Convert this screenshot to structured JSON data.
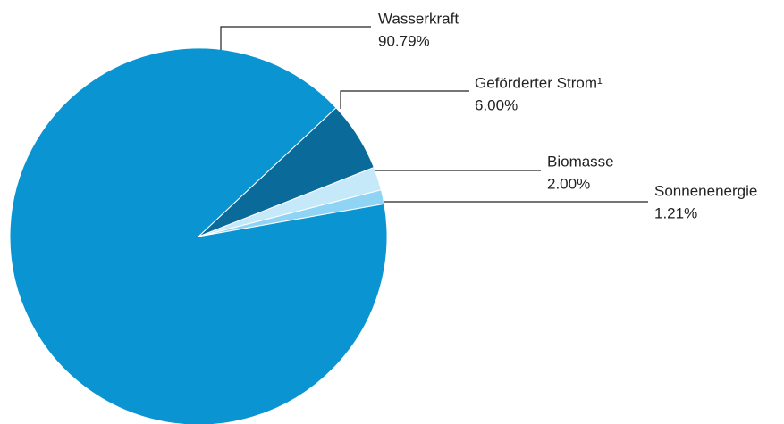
{
  "chart_data": {
    "type": "pie",
    "categories": [
      "Wasserkraft",
      "Geförderter Strom¹",
      "Biomasse",
      "Sonnenenergie"
    ],
    "values": [
      90.79,
      6.0,
      2.0,
      1.21
    ],
    "value_labels": [
      "90.79%",
      "6.00%",
      "2.00%",
      "1.21%"
    ],
    "colors": [
      "#0a94d2",
      "#0a6b9a",
      "#c6e9fa",
      "#8fd4f4"
    ]
  }
}
